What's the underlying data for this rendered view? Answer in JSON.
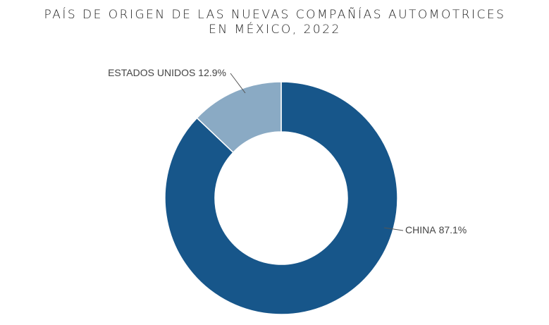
{
  "chart_data": {
    "type": "donut",
    "title": [
      "PAÍS DE ORIGEN DE LAS NUEVAS COMPAÑÍAS AUTOMOTRICES",
      "EN MÉXICO, 2022"
    ],
    "categories": [
      "CHINA",
      "ESTADOS UNIDOS"
    ],
    "values": [
      87.1,
      12.9
    ],
    "value_labels": [
      "87.1%",
      "12.9%"
    ],
    "colors": [
      "#17568a",
      "#8aaac4"
    ]
  }
}
